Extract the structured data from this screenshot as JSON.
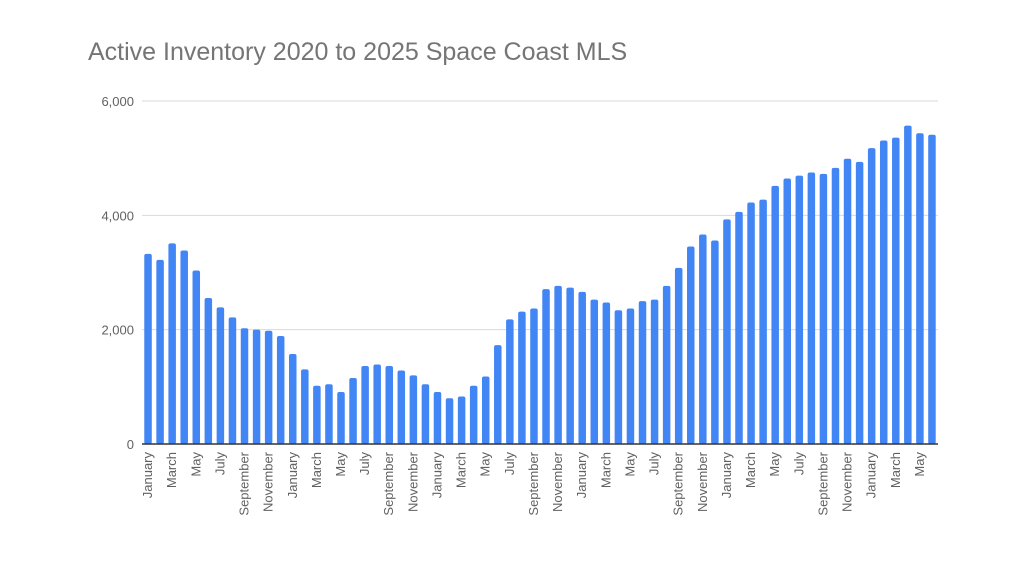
{
  "chart_data": {
    "type": "bar",
    "title": "Active Inventory 2020 to 2025 Space Coast MLS",
    "xlabel": "",
    "ylabel": "",
    "ylim": [
      0,
      6000
    ],
    "yticks": [
      "0",
      "2,000",
      "4,000",
      "6,000"
    ],
    "ytick_values": [
      0,
      2000,
      4000,
      6000
    ],
    "grid": true,
    "bar_color": "#4285f4",
    "categories": [
      "January",
      "February",
      "March",
      "April",
      "May",
      "June",
      "July",
      "August",
      "September",
      "October",
      "November",
      "December",
      "January",
      "February",
      "March",
      "April",
      "May",
      "June",
      "July",
      "August",
      "September",
      "October",
      "November",
      "December",
      "January",
      "February",
      "March",
      "April",
      "May",
      "June",
      "July",
      "August",
      "September",
      "October",
      "November",
      "December",
      "January",
      "February",
      "March",
      "April",
      "May",
      "June",
      "July",
      "August",
      "September",
      "October",
      "November",
      "December",
      "January",
      "February",
      "March",
      "April",
      "May",
      "June",
      "July",
      "August",
      "September",
      "October",
      "November",
      "December",
      "January",
      "February",
      "March",
      "April",
      "May",
      "June"
    ],
    "values": [
      3325,
      3220,
      3510,
      3385,
      3035,
      2555,
      2390,
      2215,
      2025,
      2000,
      1980,
      1890,
      1575,
      1305,
      1020,
      1045,
      910,
      1155,
      1365,
      1390,
      1365,
      1285,
      1200,
      1045,
      910,
      800,
      830,
      1020,
      1180,
      1730,
      2180,
      2315,
      2370,
      2710,
      2765,
      2735,
      2660,
      2525,
      2475,
      2340,
      2370,
      2500,
      2525,
      2765,
      3080,
      3455,
      3665,
      3560,
      3930,
      4060,
      4225,
      4275,
      4515,
      4645,
      4695,
      4750,
      4725,
      4830,
      4990,
      4935,
      5175,
      5310,
      5360,
      5570,
      5435,
      5410
    ]
  }
}
